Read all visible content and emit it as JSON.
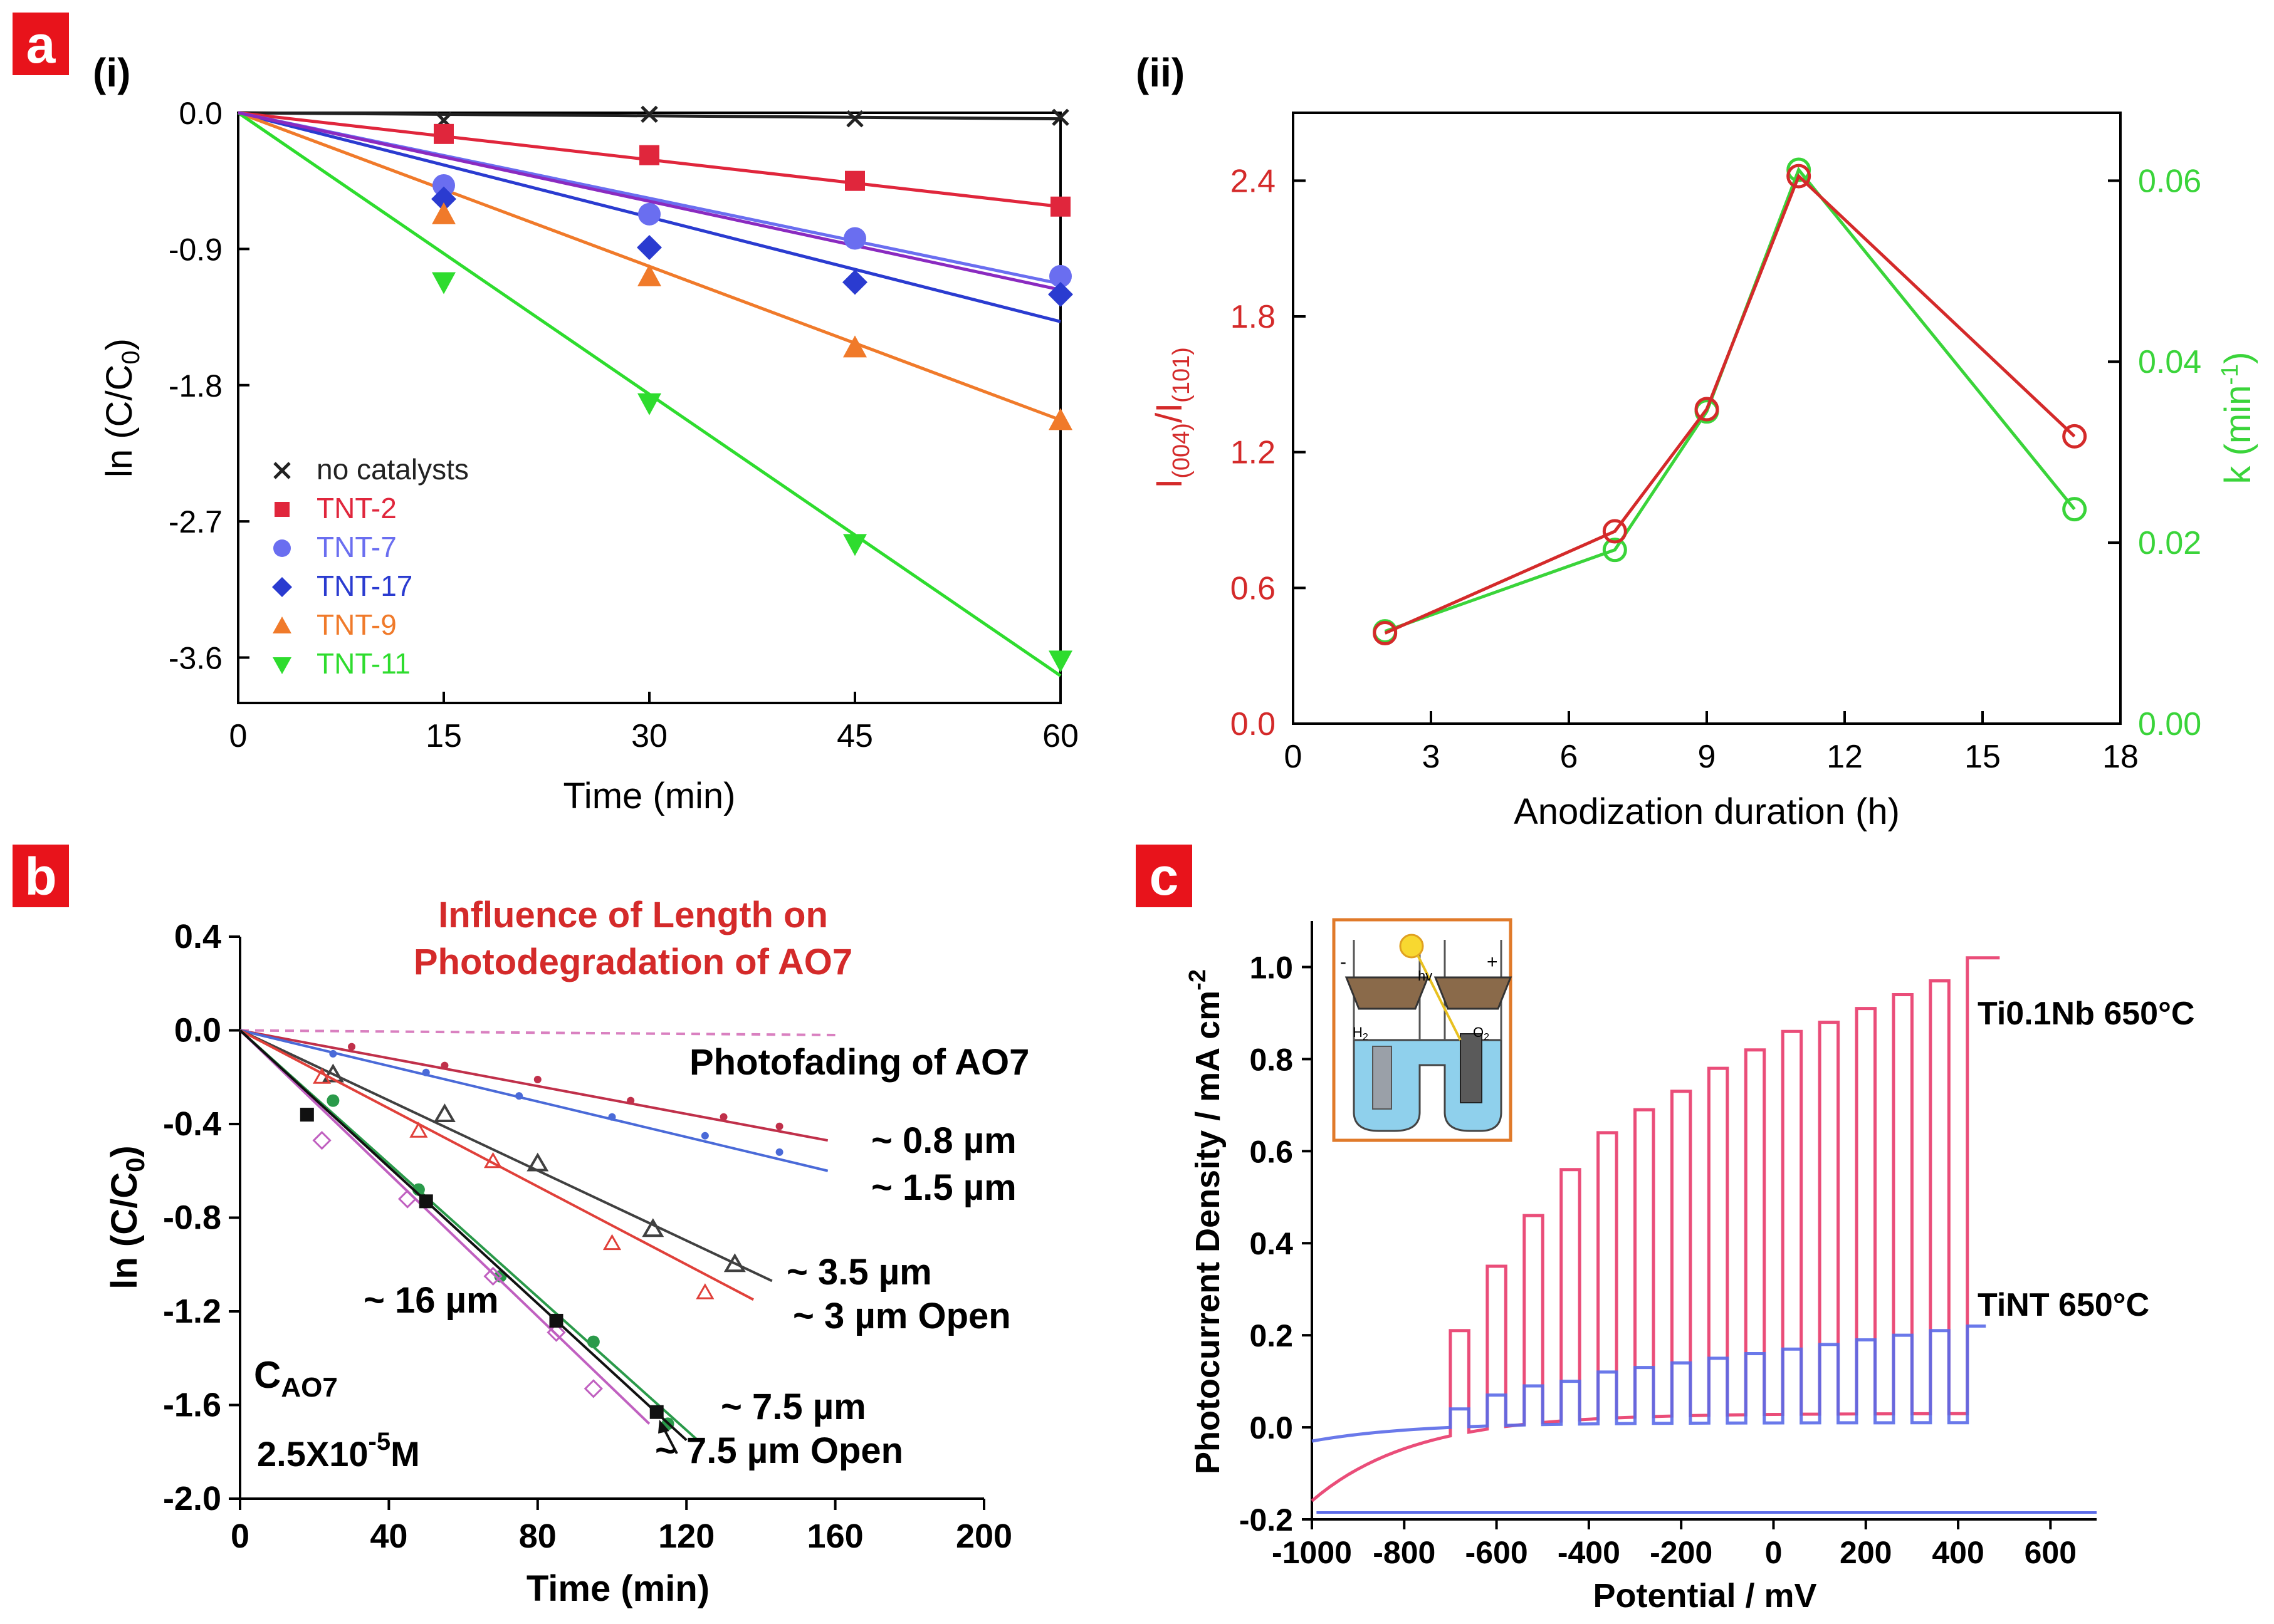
{
  "panels": {
    "a": {
      "badge": "a",
      "i": {
        "sublabel": "(i)",
        "xlabel": "Time (min)",
        "ylabel_main": "ln (C/C",
        "ylabel_sub": "0",
        "ylabel_end": ")"
      },
      "ii": {
        "sublabel": "(ii)",
        "xlabel": "Anodization duration (h)",
        "ylabel_left_I": "I",
        "ylabel_left_sub1": "(004)",
        "ylabel_left_slash": "/I",
        "ylabel_left_sub2": "(101)",
        "ylabel_right": "k (min",
        "ylabel_right_sup": "-1",
        "ylabel_right_end": ")"
      }
    },
    "b": {
      "badge": "b",
      "title_line1": "Influence of Length on",
      "title_line2": "Photodegradation of AO7",
      "xlabel": "Time (min)",
      "ylabel_main": "ln (C/C",
      "ylabel_sub": "0",
      "ylabel_end": ")",
      "annotation_photofading": "Photofading of AO7",
      "conc_label_C": "C",
      "conc_label_sub": "AO7",
      "conc_value_main": "2.5X10",
      "conc_value_sup": "-5",
      "conc_value_unit": "M"
    },
    "c": {
      "badge": "c",
      "xlabel": "Potential / mV",
      "ylabel_main": "Photocurrent Density / mA cm",
      "ylabel_sup": "-2",
      "inset_minus": "-",
      "inset_plus": "+",
      "inset_hv": "hv",
      "inset_h2": "H",
      "inset_h2_sub": "2",
      "inset_o2": "O",
      "inset_o2_sub": "2"
    }
  },
  "chart_data": [
    {
      "id": "a-i",
      "type": "scatter",
      "xlabel": "Time (min)",
      "ylabel": "ln (C/C0)",
      "xlim": [
        0,
        60
      ],
      "ylim": [
        -3.9,
        0
      ],
      "xticks": [
        "0",
        "15",
        "30",
        "45",
        "60"
      ],
      "yticks": [
        "0.0",
        "-0.9",
        "-1.8",
        "-2.7",
        "-3.6"
      ],
      "legend_position": "bottom-left",
      "x": [
        0,
        15,
        30,
        45,
        60
      ],
      "series": [
        {
          "name": "no catalysts",
          "marker": "x",
          "color": "#222222",
          "values": [
            0,
            -0.05,
            -0.01,
            -0.04,
            -0.03
          ],
          "fit_end": -0.04
        },
        {
          "name": "TNT-2",
          "marker": "square",
          "color": "#e0263c",
          "values": [
            0,
            -0.14,
            -0.28,
            -0.45,
            -0.62
          ],
          "fit_end": -0.62
        },
        {
          "name": "TNT-7",
          "marker": "circle",
          "color": "#6a6ef0",
          "values": [
            0,
            -0.48,
            -0.67,
            -0.83,
            -1.08
          ],
          "fit_end": -1.13
        },
        {
          "name": "TNT-17",
          "marker": "diamond",
          "color": "#2a3bd0",
          "values": [
            0,
            -0.57,
            -0.89,
            -1.12,
            -1.2
          ],
          "fit_end": -1.38
        },
        {
          "name": "TNT-9",
          "marker": "triangle-up",
          "color": "#f07a2a",
          "values": [
            0,
            -0.67,
            -1.08,
            -1.55,
            -2.03
          ],
          "fit_end": -2.03
        },
        {
          "name": "TNT-11",
          "marker": "triangle-down",
          "color": "#2edc2e",
          "values": [
            0,
            -1.12,
            -1.92,
            -2.85,
            -3.62
          ],
          "fit_end": -3.72
        }
      ],
      "extra_fit": {
        "color": "#8a2ac0",
        "fit_end": -1.17
      }
    },
    {
      "id": "a-ii",
      "type": "line",
      "xlabel": "Anodization duration (h)",
      "ylabel": "I(004)/I(101)",
      "ylabel_right": "k (min-1)",
      "xlim": [
        0,
        18
      ],
      "ylim": [
        0,
        2.7
      ],
      "ylim_right": [
        0,
        0.0675
      ],
      "xticks": [
        "0",
        "3",
        "6",
        "9",
        "12",
        "15",
        "18"
      ],
      "yticks": [
        "0.0",
        "0.6",
        "1.2",
        "1.8",
        "2.4"
      ],
      "yticks_right": [
        "0.00",
        "0.02",
        "0.04",
        "0.06"
      ],
      "x": [
        2,
        7,
        9,
        11,
        17
      ],
      "series": [
        {
          "name": "I(004)/I(101)",
          "axis": "left",
          "color": "#d42a2a",
          "values": [
            0.4,
            0.85,
            1.39,
            2.42,
            1.27
          ]
        },
        {
          "name": "k",
          "axis": "right",
          "color": "#3ad43a",
          "values": [
            0.0102,
            0.0192,
            0.0345,
            0.0612,
            0.0237
          ]
        }
      ]
    },
    {
      "id": "b",
      "type": "line",
      "title": "Influence of Length on Photodegradation of AO7",
      "xlabel": "Time (min)",
      "ylabel": "ln (C/C0)",
      "xlim": [
        0,
        200
      ],
      "ylim": [
        -2.0,
        0.4
      ],
      "xticks": [
        "0",
        "40",
        "80",
        "120",
        "160",
        "200"
      ],
      "yticks": [
        "0.4",
        "0.0",
        "-0.4",
        "-0.8",
        "-1.2",
        "-1.6",
        "-2.0"
      ],
      "series": [
        {
          "name": "Photofading of AO7",
          "color": "#d980c0",
          "dashed": true,
          "x": [
            0,
            160
          ],
          "values": [
            0,
            -0.02
          ],
          "points_x": [],
          "points_y": []
        },
        {
          "name": "~ 0.8 µm",
          "color": "#c0304a",
          "x": [
            0,
            158
          ],
          "values": [
            0,
            -0.47
          ],
          "points_x": [
            30,
            55,
            80,
            105,
            130,
            145
          ],
          "points_y": [
            -0.07,
            -0.15,
            -0.21,
            -0.3,
            -0.37,
            -0.41
          ]
        },
        {
          "name": "~ 1.5 µm",
          "color": "#4a6ad8",
          "x": [
            0,
            158
          ],
          "values": [
            0,
            -0.6
          ],
          "points_x": [
            25,
            50,
            75,
            100,
            125,
            145
          ],
          "points_y": [
            -0.1,
            -0.18,
            -0.28,
            -0.37,
            -0.45,
            -0.52
          ]
        },
        {
          "name": "~ 3.5 µm",
          "color": "#404040",
          "x": [
            0,
            143
          ],
          "values": [
            0,
            -1.07
          ],
          "points_x": [
            25,
            55,
            80,
            111,
            133
          ],
          "points_y": [
            -0.19,
            -0.36,
            -0.57,
            -0.85,
            -1.0
          ]
        },
        {
          "name": "~ 3 µm Open",
          "color": "#e0403a",
          "x": [
            0,
            138
          ],
          "values": [
            0,
            -1.15
          ],
          "points_x": [
            22,
            48,
            68,
            100,
            125
          ],
          "points_y": [
            -0.2,
            -0.43,
            -0.56,
            -0.91,
            -1.12
          ]
        },
        {
          "name": "~ 7.5 µm",
          "color": "#2a9a4a",
          "x": [
            0,
            123
          ],
          "values": [
            0,
            -1.75
          ],
          "points_x": [
            25,
            48,
            70,
            95,
            115
          ],
          "points_y": [
            -0.3,
            -0.68,
            -1.05,
            -1.33,
            -1.68
          ]
        },
        {
          "name": "~ 16 µm",
          "color": "#c060c0",
          "x": [
            0,
            110
          ],
          "values": [
            0,
            -1.68
          ],
          "points_x": [
            22,
            45,
            68,
            85,
            95
          ],
          "points_y": [
            -0.47,
            -0.72,
            -1.05,
            -1.29,
            -1.53
          ]
        },
        {
          "name": "~ 7.5 µm Open",
          "color": "#111111",
          "x": [
            0,
            120
          ],
          "values": [
            0,
            -1.75
          ],
          "points_x": [
            18,
            50,
            85,
            112
          ],
          "points_y": [
            -0.36,
            -0.73,
            -1.24,
            -1.63
          ]
        }
      ],
      "labels": [
        "Photofading of AO7",
        "~ 0.8 µm",
        "~ 1.5 µm",
        "~ 3.5 µm",
        "~ 3 µm Open",
        "~ 16 µm",
        "~ 7.5 µm",
        "~ 7.5 µm Open"
      ]
    },
    {
      "id": "c",
      "type": "line",
      "xlabel": "Potential / mV",
      "ylabel": "Photocurrent Density / mA cm-2",
      "xlim": [
        -1000,
        700
      ],
      "ylim": [
        -0.2,
        1.1
      ],
      "xticks": [
        "-1000",
        "-800",
        "-600",
        "-400",
        "-200",
        "0",
        "200",
        "400",
        "600"
      ],
      "yticks": [
        "-0.2",
        "0.0",
        "0.2",
        "0.4",
        "0.6",
        "0.8",
        "1.0"
      ],
      "series": [
        {
          "name": "Ti0.1Nb 650°C",
          "color": "#e83a6a",
          "pulse_x": [
            -700,
            -620,
            -540,
            -460,
            -380,
            -300,
            -220,
            -140,
            -60,
            20,
            100,
            180,
            260,
            340
          ],
          "pulse_on": [
            0.21,
            0.35,
            0.46,
            0.56,
            0.64,
            0.69,
            0.73,
            0.78,
            0.82,
            0.86,
            0.88,
            0.91,
            0.94,
            0.97
          ],
          "dark_start": -0.16,
          "dark_end": 0.03,
          "end_value": 1.02
        },
        {
          "name": "TiNT 650°C",
          "color": "#5a6ae8",
          "pulse_x": [
            -700,
            -620,
            -540,
            -460,
            -380,
            -300,
            -220,
            -140,
            -60,
            20,
            100,
            180,
            260,
            340
          ],
          "pulse_on": [
            0.04,
            0.07,
            0.09,
            0.1,
            0.12,
            0.13,
            0.14,
            0.15,
            0.16,
            0.17,
            0.18,
            0.19,
            0.2,
            0.21
          ],
          "dark_start": -0.03,
          "dark_end": 0.01,
          "end_value": 0.22
        }
      ]
    }
  ]
}
